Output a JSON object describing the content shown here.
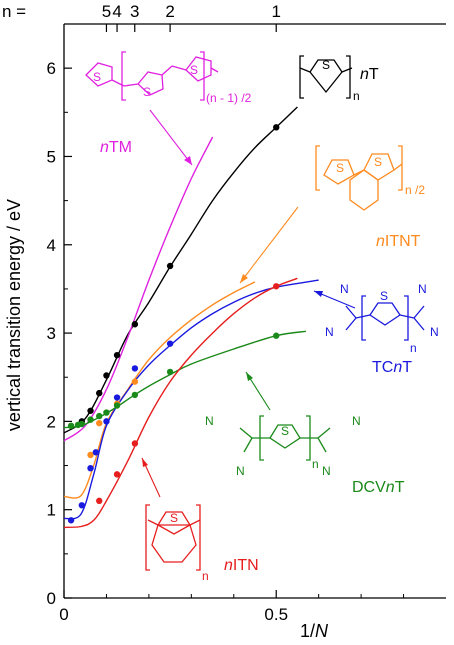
{
  "chart_data": {
    "type": "scatter",
    "xlabel_prefix": "1/",
    "xlabel_var": "N",
    "ylabel": "vertical transition energy / eV",
    "xlim": [
      0,
      0.9
    ],
    "ylim": [
      0,
      6.5
    ],
    "x_ticks": [
      "0",
      "0.5"
    ],
    "y_ticks": [
      "0",
      "1",
      "2",
      "3",
      "4",
      "5",
      "6"
    ],
    "top_axis": {
      "prefix": "n =",
      "labels": [
        {
          "text": "5",
          "x": 0.1
        },
        {
          "text": "4",
          "x": 0.125
        },
        {
          "text": "3",
          "x": 0.1667
        },
        {
          "text": "2",
          "x": 0.25
        },
        {
          "text": "1",
          "x": 0.5
        }
      ]
    },
    "grid": false,
    "series": [
      {
        "name": "nT",
        "label_italic": "n",
        "label_rest": "T",
        "color": "#000000",
        "points": [
          [
            0.042,
            2.0
          ],
          [
            0.0625,
            2.12
          ],
          [
            0.083,
            2.32
          ],
          [
            0.1,
            2.52
          ],
          [
            0.125,
            2.75
          ],
          [
            0.167,
            3.1
          ],
          [
            0.25,
            3.76
          ],
          [
            0.5,
            5.33
          ]
        ],
        "curve": [
          [
            0.0,
            1.87
          ],
          [
            0.05,
            2.03
          ],
          [
            0.1,
            2.47
          ],
          [
            0.15,
            2.98
          ],
          [
            0.2,
            3.35
          ],
          [
            0.25,
            3.75
          ],
          [
            0.3,
            4.12
          ],
          [
            0.35,
            4.5
          ],
          [
            0.4,
            4.82
          ],
          [
            0.45,
            5.1
          ],
          [
            0.5,
            5.33
          ],
          [
            0.55,
            5.56
          ]
        ]
      },
      {
        "name": "nTM",
        "label_italic": "n",
        "label_rest": "TM",
        "color": "#e020e0",
        "points": [],
        "curve": [
          [
            0.0,
            1.78
          ],
          [
            0.05,
            1.95
          ],
          [
            0.1,
            2.36
          ],
          [
            0.15,
            2.95
          ],
          [
            0.2,
            3.6
          ],
          [
            0.25,
            4.2
          ],
          [
            0.3,
            4.75
          ],
          [
            0.35,
            5.22
          ]
        ]
      },
      {
        "name": "nITNT",
        "label_italic": "n",
        "label_rest": "ITNT",
        "color": "#ff8a1e",
        "points": [
          [
            0.0625,
            1.62
          ],
          [
            0.083,
            1.98
          ],
          [
            0.125,
            2.2
          ],
          [
            0.167,
            2.45
          ]
        ],
        "curve": [
          [
            0.0,
            1.15
          ],
          [
            0.04,
            1.16
          ],
          [
            0.07,
            1.5
          ],
          [
            0.1,
            1.98
          ],
          [
            0.15,
            2.36
          ],
          [
            0.2,
            2.7
          ],
          [
            0.25,
            2.95
          ],
          [
            0.3,
            3.15
          ],
          [
            0.35,
            3.32
          ],
          [
            0.4,
            3.46
          ],
          [
            0.45,
            3.58
          ]
        ]
      },
      {
        "name": "TCnT",
        "label_pre": "TC",
        "label_italic": "n",
        "label_rest": "T",
        "color": "#1a1adf",
        "points": [
          [
            0.0167,
            0.88
          ],
          [
            0.042,
            1.05
          ],
          [
            0.0625,
            1.47
          ],
          [
            0.075,
            1.65
          ],
          [
            0.1,
            2.0
          ],
          [
            0.125,
            2.27
          ],
          [
            0.167,
            2.6
          ],
          [
            0.25,
            2.88
          ]
        ],
        "curve": [
          [
            0.0,
            0.9
          ],
          [
            0.04,
            0.95
          ],
          [
            0.07,
            1.4
          ],
          [
            0.1,
            1.95
          ],
          [
            0.15,
            2.35
          ],
          [
            0.2,
            2.64
          ],
          [
            0.25,
            2.86
          ],
          [
            0.3,
            3.06
          ],
          [
            0.35,
            3.22
          ],
          [
            0.4,
            3.35
          ],
          [
            0.45,
            3.45
          ],
          [
            0.5,
            3.52
          ],
          [
            0.6,
            3.6
          ]
        ]
      },
      {
        "name": "DCVnT",
        "label_pre": "DCV",
        "label_italic": "n",
        "label_rest": "T",
        "color": "#1a8a1a",
        "points": [
          [
            0.0167,
            1.95
          ],
          [
            0.033,
            1.96
          ],
          [
            0.042,
            1.97
          ],
          [
            0.0625,
            2.02
          ],
          [
            0.083,
            2.06
          ],
          [
            0.1,
            2.1
          ],
          [
            0.125,
            2.18
          ],
          [
            0.167,
            2.3
          ],
          [
            0.25,
            2.56
          ],
          [
            0.5,
            2.97
          ]
        ],
        "curve": [
          [
            0.0,
            1.93
          ],
          [
            0.04,
            1.95
          ],
          [
            0.08,
            2.04
          ],
          [
            0.12,
            2.15
          ],
          [
            0.16,
            2.28
          ],
          [
            0.2,
            2.4
          ],
          [
            0.25,
            2.53
          ],
          [
            0.3,
            2.65
          ],
          [
            0.4,
            2.82
          ],
          [
            0.5,
            2.97
          ],
          [
            0.57,
            3.02
          ]
        ]
      },
      {
        "name": "nITN",
        "label_italic": "n",
        "label_rest": "ITN",
        "color": "#e61e1e",
        "points": [
          [
            0.083,
            1.1
          ],
          [
            0.125,
            1.4
          ],
          [
            0.167,
            1.75
          ],
          [
            0.5,
            3.53
          ]
        ],
        "curve": [
          [
            0.0,
            0.8
          ],
          [
            0.04,
            0.81
          ],
          [
            0.07,
            0.88
          ],
          [
            0.1,
            1.1
          ],
          [
            0.15,
            1.55
          ],
          [
            0.2,
            2.05
          ],
          [
            0.25,
            2.45
          ],
          [
            0.3,
            2.75
          ],
          [
            0.35,
            3.0
          ],
          [
            0.4,
            3.22
          ],
          [
            0.45,
            3.4
          ],
          [
            0.5,
            3.53
          ],
          [
            0.55,
            3.62
          ]
        ]
      }
    ]
  },
  "structures": {
    "nTM_subscript": "(n - 1) /2",
    "nT_subscript": "n",
    "nITNT_subscript": "n /2",
    "TCnT_subscript": "n",
    "DCVnT_subscript": "n",
    "nITN_subscript": "n",
    "atom_S": "S",
    "atom_N": "N"
  }
}
